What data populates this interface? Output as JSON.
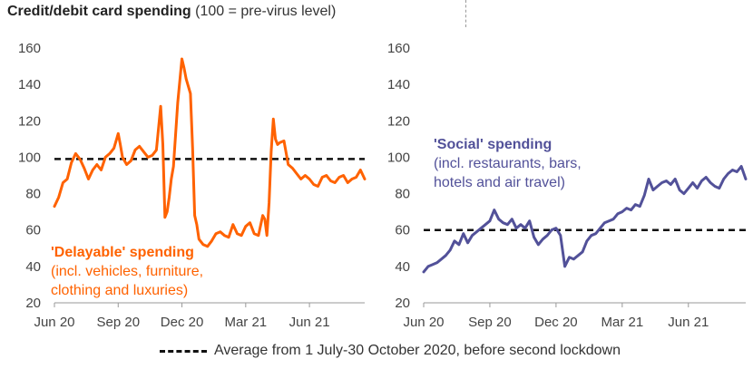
{
  "title": {
    "bold": "Credit/debit card spending",
    "rest": "(100 = pre-virus level)"
  },
  "legend_label": "Average from 1 July-30 October 2020, before second lockdown",
  "colors": {
    "delayable": "#ff6200",
    "social": "#525199",
    "average": "#111111",
    "axis": "#999999"
  },
  "chart_data": [
    {
      "type": "line",
      "ylim": [
        20,
        160
      ],
      "yticks": [
        20,
        40,
        60,
        80,
        100,
        120,
        140,
        160
      ],
      "xtick_labels": [
        "Jun 20",
        "Sep 20",
        "Dec 20",
        "Mar 21",
        "Jun 21"
      ],
      "xlim": [
        0,
        14.6
      ],
      "xtick_positions": [
        0,
        3,
        6,
        9,
        12
      ],
      "reference_line": 99,
      "annotation": {
        "title": "'Delayable' spending",
        "lines": [
          "(incl. vehicles, furniture,",
          "clothing and luxuries)"
        ]
      },
      "series": [
        {
          "color_key": "delayable",
          "x": [
            0,
            0.2,
            0.4,
            0.6,
            0.8,
            1.0,
            1.2,
            1.4,
            1.6,
            1.8,
            2.0,
            2.2,
            2.4,
            2.6,
            2.8,
            3.0,
            3.1,
            3.2,
            3.4,
            3.6,
            3.8,
            4.0,
            4.2,
            4.4,
            4.6,
            4.8,
            5.0,
            5.1,
            5.2,
            5.3,
            5.4,
            5.5,
            5.6,
            5.8,
            6.0,
            6.1,
            6.2,
            6.4,
            6.5,
            6.6,
            6.7,
            6.8,
            7.0,
            7.2,
            7.4,
            7.6,
            7.8,
            8.0,
            8.2,
            8.4,
            8.6,
            8.8,
            9.0,
            9.2,
            9.4,
            9.6,
            9.8,
            9.9,
            10.0,
            10.1,
            10.2,
            10.3,
            10.4,
            10.5,
            10.6,
            10.8,
            11.0,
            11.2,
            11.4,
            11.6,
            11.8,
            12.0,
            12.2,
            12.4,
            12.6,
            12.8,
            13.0,
            13.2,
            13.4,
            13.6,
            13.8,
            14.0,
            14.2,
            14.4,
            14.6
          ],
          "values": [
            73,
            78,
            86,
            88,
            97,
            102,
            99,
            94,
            88,
            93,
            96,
            93,
            100,
            102,
            105,
            113,
            107,
            100,
            96,
            98,
            104,
            106,
            103,
            100,
            101,
            104,
            128,
            107,
            67,
            70,
            78,
            88,
            95,
            130,
            154,
            149,
            143,
            135,
            105,
            68,
            63,
            55,
            52,
            51,
            54,
            58,
            59,
            57,
            56,
            63,
            58,
            57,
            62,
            64,
            58,
            57,
            68,
            66,
            57,
            75,
            103,
            121,
            110,
            107,
            108,
            109,
            96,
            94,
            91,
            88,
            90,
            88,
            85,
            84,
            89,
            90,
            87,
            86,
            89,
            90,
            86,
            88,
            89,
            93,
            88
          ]
        }
      ]
    },
    {
      "type": "line",
      "ylim": [
        20,
        160
      ],
      "yticks": [
        20,
        40,
        60,
        80,
        100,
        120,
        140,
        160
      ],
      "xtick_labels": [
        "Jun 20",
        "Sep 20",
        "Dec 20",
        "Mar 21",
        "Jun 21"
      ],
      "xlim": [
        0,
        14.6
      ],
      "xtick_positions": [
        0,
        3,
        6,
        9,
        12
      ],
      "reference_line": 60,
      "annotation": {
        "title": "'Social' spending",
        "lines": [
          "(incl. restaurants, bars,",
          "hotels and air travel)"
        ]
      },
      "series": [
        {
          "color_key": "social",
          "x": [
            0,
            0.2,
            0.4,
            0.6,
            0.8,
            1.0,
            1.2,
            1.4,
            1.6,
            1.8,
            2.0,
            2.2,
            2.4,
            2.6,
            2.8,
            3.0,
            3.2,
            3.4,
            3.6,
            3.8,
            4.0,
            4.2,
            4.4,
            4.6,
            4.8,
            5.0,
            5.2,
            5.4,
            5.6,
            5.8,
            6.0,
            6.2,
            6.4,
            6.6,
            6.8,
            7.0,
            7.2,
            7.4,
            7.6,
            7.8,
            8.0,
            8.2,
            8.4,
            8.6,
            8.8,
            9.0,
            9.2,
            9.4,
            9.6,
            9.8,
            10.0,
            10.2,
            10.4,
            10.6,
            10.8,
            11.0,
            11.2,
            11.4,
            11.6,
            11.8,
            12.0,
            12.2,
            12.4,
            12.6,
            12.8,
            13.0,
            13.2,
            13.4,
            13.6,
            13.8,
            14.0,
            14.2,
            14.4,
            14.6
          ],
          "values": [
            37,
            40,
            41,
            42,
            44,
            46,
            49,
            54,
            52,
            58,
            53,
            57,
            59,
            61,
            63,
            65,
            71,
            66,
            64,
            63,
            66,
            61,
            63,
            61,
            65,
            56,
            52,
            55,
            57,
            60,
            61,
            57,
            40,
            45,
            44,
            46,
            48,
            54,
            57,
            58,
            61,
            64,
            65,
            66,
            69,
            70,
            72,
            71,
            74,
            73,
            79,
            88,
            82,
            84,
            86,
            87,
            85,
            88,
            82,
            80,
            83,
            86,
            83,
            87,
            89,
            86,
            84,
            83,
            88,
            91,
            93,
            92,
            95,
            88
          ]
        }
      ]
    }
  ]
}
